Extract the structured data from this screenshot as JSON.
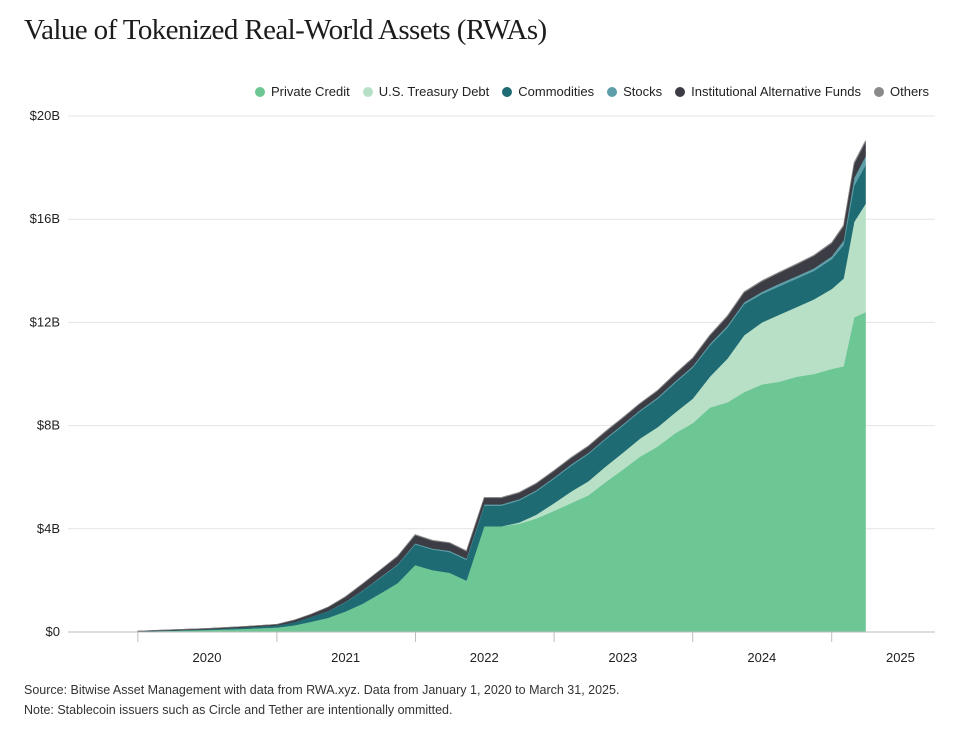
{
  "chart_data": {
    "type": "area",
    "title": "Value of Tokenized Real-World Assets (RWAs)",
    "xlabel": "",
    "ylabel": "",
    "stacked": true,
    "grid": true,
    "legend_position": "top-right",
    "y_ticks": [
      "$0",
      "$4B",
      "$8B",
      "$12B",
      "$16B",
      "$20B"
    ],
    "ylim": [
      0,
      20
    ],
    "x_ticks": [
      "2020",
      "2021",
      "2022",
      "2023",
      "2024",
      "2025"
    ],
    "x_range": [
      "2019-07-01",
      "2025-09-30"
    ],
    "x": [
      "2020-01-01",
      "2020-04-01",
      "2020-07-01",
      "2020-10-01",
      "2021-01-01",
      "2021-02-15",
      "2021-04-01",
      "2021-05-15",
      "2021-07-01",
      "2021-08-15",
      "2021-10-01",
      "2021-11-15",
      "2021-12-31",
      "2022-02-15",
      "2022-04-01",
      "2022-05-15",
      "2022-07-01",
      "2022-08-15",
      "2022-10-01",
      "2022-11-15",
      "2023-01-01",
      "2023-02-15",
      "2023-04-01",
      "2023-05-15",
      "2023-07-01",
      "2023-08-15",
      "2023-10-01",
      "2023-11-15",
      "2024-01-01",
      "2024-02-15",
      "2024-04-01",
      "2024-05-15",
      "2024-07-01",
      "2024-08-15",
      "2024-10-01",
      "2024-11-15",
      "2025-01-01",
      "2025-02-01",
      "2025-03-01",
      "2025-03-31"
    ],
    "series": [
      {
        "name": "Private Credit",
        "color": "#6cc794",
        "values": [
          0.02,
          0.05,
          0.08,
          0.12,
          0.18,
          0.26,
          0.4,
          0.55,
          0.8,
          1.1,
          1.5,
          1.9,
          2.6,
          2.4,
          2.3,
          2.0,
          4.1,
          4.1,
          4.2,
          4.4,
          4.7,
          5.0,
          5.3,
          5.8,
          6.3,
          6.8,
          7.2,
          7.7,
          8.1,
          8.7,
          8.9,
          9.3,
          9.6,
          9.7,
          9.9,
          10.0,
          10.2,
          10.3,
          12.2,
          12.4
        ]
      },
      {
        "name": "U.S. Treasury Debt",
        "color": "#b8e0c7",
        "values": [
          0,
          0,
          0,
          0,
          0,
          0,
          0,
          0,
          0,
          0,
          0,
          0,
          0,
          0,
          0,
          0,
          0,
          0,
          0.05,
          0.15,
          0.3,
          0.45,
          0.55,
          0.6,
          0.65,
          0.7,
          0.75,
          0.8,
          0.95,
          1.2,
          1.7,
          2.2,
          2.4,
          2.6,
          2.7,
          2.9,
          3.1,
          3.4,
          3.7,
          4.2
        ]
      },
      {
        "name": "Commodities",
        "color": "#1f6b74",
        "values": [
          0.01,
          0.02,
          0.03,
          0.05,
          0.07,
          0.12,
          0.18,
          0.25,
          0.35,
          0.5,
          0.6,
          0.7,
          0.8,
          0.8,
          0.8,
          0.8,
          0.8,
          0.8,
          0.85,
          0.9,
          0.95,
          1.0,
          1.05,
          1.05,
          1.05,
          1.05,
          1.1,
          1.15,
          1.2,
          1.2,
          1.2,
          1.2,
          1.1,
          1.1,
          1.1,
          1.1,
          1.15,
          1.3,
          1.4,
          1.5
        ]
      },
      {
        "name": "Stocks",
        "color": "#5e9ea8",
        "values": [
          0,
          0,
          0,
          0,
          0,
          0,
          0.01,
          0.01,
          0.02,
          0.02,
          0.03,
          0.03,
          0.04,
          0.04,
          0.05,
          0.05,
          0.05,
          0.05,
          0.05,
          0.05,
          0.05,
          0.05,
          0.05,
          0.05,
          0.05,
          0.05,
          0.06,
          0.06,
          0.06,
          0.07,
          0.08,
          0.08,
          0.09,
          0.1,
          0.1,
          0.1,
          0.12,
          0.18,
          0.3,
          0.35
        ]
      },
      {
        "name": "Institutional Alternative Funds",
        "color": "#3c3d44",
        "values": [
          0.01,
          0.02,
          0.03,
          0.04,
          0.05,
          0.08,
          0.1,
          0.15,
          0.2,
          0.25,
          0.28,
          0.3,
          0.32,
          0.3,
          0.3,
          0.28,
          0.25,
          0.25,
          0.25,
          0.25,
          0.25,
          0.25,
          0.25,
          0.25,
          0.25,
          0.25,
          0.25,
          0.28,
          0.3,
          0.32,
          0.35,
          0.38,
          0.4,
          0.42,
          0.45,
          0.48,
          0.5,
          0.55,
          0.55,
          0.55
        ]
      },
      {
        "name": "Others",
        "color": "#8a8a8a",
        "values": [
          0,
          0,
          0,
          0,
          0,
          0,
          0,
          0,
          0.01,
          0.01,
          0.01,
          0.02,
          0.02,
          0.02,
          0.02,
          0.02,
          0.02,
          0.02,
          0.02,
          0.02,
          0.02,
          0.02,
          0.02,
          0.02,
          0.02,
          0.02,
          0.02,
          0.02,
          0.02,
          0.02,
          0.03,
          0.03,
          0.03,
          0.03,
          0.03,
          0.03,
          0.03,
          0.04,
          0.05,
          0.05
        ]
      }
    ]
  },
  "footnotes": {
    "source": "Source: Bitwise Asset Management with data from RWA.xyz. Data from January 1, 2020 to March 31, 2025.",
    "note": "Note: Stablecoin issuers such as Circle and Tether are intentionally ommitted."
  },
  "colors": {
    "grid": "#e4e4e4",
    "axis": "#bdbdbd"
  }
}
